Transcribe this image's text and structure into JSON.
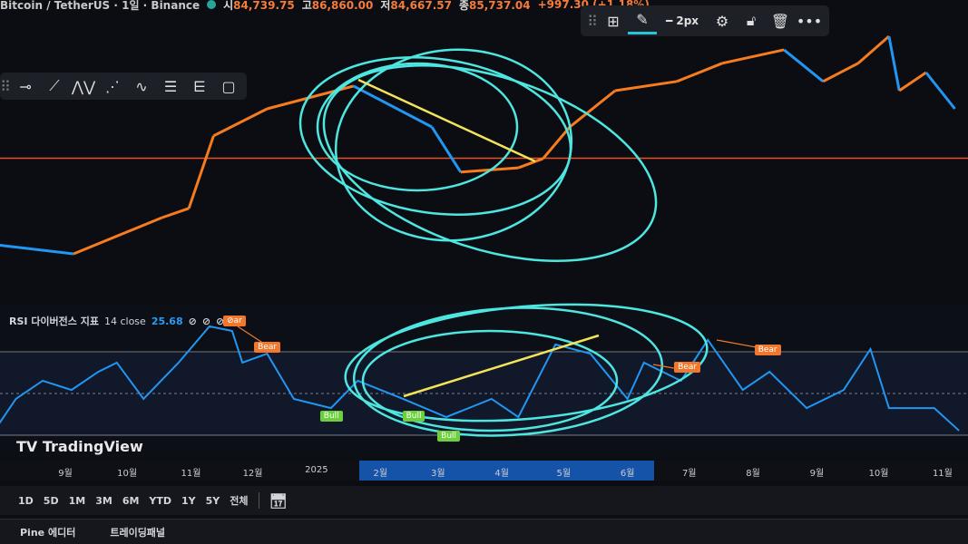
{
  "header": {
    "symbol": "Bitcoin / TetherUS · 1일 · Binance",
    "open_label": "시",
    "open": "84,739.75",
    "high_label": "고",
    "high": "86,860.00",
    "low_label": "저",
    "low": "84,667.57",
    "close_label": "종",
    "close": "85,737.04",
    "change": "+997.30 (+1.18%)"
  },
  "drawing_toolbar": {
    "icons": [
      "add-grid-icon",
      "pencil-icon",
      "line-style-icon",
      "settings-icon",
      "lock-icon",
      "trash-icon",
      "more-icon"
    ],
    "width_label": "2px",
    "accent": "#26c6da"
  },
  "left_toolbar": {
    "icons": [
      "drag-handle-icon",
      "horizontal-ray-icon",
      "trend-line-icon",
      "xabcd-pattern-icon",
      "abcd-pattern-icon",
      "elliott-wave-icon",
      "parallel-channel-icon",
      "regression-icon",
      "rectangle-icon"
    ]
  },
  "price": {
    "up_color": "#f57c1f",
    "down_color": "#2196f3",
    "price_line_color": "#e8502a",
    "price_line_value": 87,
    "series": [
      [
        "2024-07-30",
        60.7
      ],
      [
        "2024-09-05",
        58
      ],
      [
        "2024-10-18",
        69
      ],
      [
        "2024-10-31",
        71.8
      ],
      [
        "2024-11-12",
        93.8
      ],
      [
        "2024-12-08",
        102
      ],
      [
        "2025-01-19",
        108.9
      ],
      [
        "2025-02-26",
        96.5
      ],
      [
        "2025-03-12",
        82.8
      ],
      [
        "2025-04-09",
        84.1
      ],
      [
        "2025-04-21",
        86.9
      ],
      [
        "2025-05-04",
        96.5
      ],
      [
        "2025-05-26",
        107.5
      ],
      [
        "2025-06-25",
        110.3
      ],
      [
        "2025-07-17",
        115.8
      ],
      [
        "2025-08-16",
        119.9
      ],
      [
        "2025-09-04",
        110.3
      ],
      [
        "2025-09-21",
        115.8
      ],
      [
        "2025-10-06",
        124
      ],
      [
        "2025-10-11",
        107.5
      ],
      [
        "2025-10-24",
        113
      ],
      [
        "2025-11-07",
        102
      ]
    ]
  },
  "rsi": {
    "title": "RSI 다이버전스 지표",
    "params": "14 close",
    "value": "25.68",
    "color": "#2196f3",
    "levels": [
      70,
      50,
      30
    ],
    "series": [
      [
        "2024-07-30",
        34.3
      ],
      [
        "2024-08-08",
        47.4
      ],
      [
        "2024-08-21",
        56.1
      ],
      [
        "2024-09-04",
        51.7
      ],
      [
        "2024-09-17",
        60.4
      ],
      [
        "2024-09-26",
        64.8
      ],
      [
        "2024-10-09",
        47.4
      ],
      [
        "2024-10-26",
        64.8
      ],
      [
        "2024-11-10",
        82.2
      ],
      [
        "2024-11-21",
        80
      ],
      [
        "2024-11-26",
        64.8
      ],
      [
        "2024-12-08",
        69.1
      ],
      [
        "2024-12-21",
        47.4
      ],
      [
        "2025-01-08",
        43
      ],
      [
        "2025-01-21",
        56.1
      ],
      [
        "2025-02-12",
        47.4
      ],
      [
        "2025-03-05",
        38.7
      ],
      [
        "2025-03-27",
        47.4
      ],
      [
        "2025-04-09",
        38.7
      ],
      [
        "2025-04-27",
        73.5
      ],
      [
        "2025-05-14",
        69.1
      ],
      [
        "2025-06-01",
        47.4
      ],
      [
        "2025-06-09",
        64.8
      ],
      [
        "2025-06-27",
        56.1
      ],
      [
        "2025-07-10",
        75.7
      ],
      [
        "2025-07-27",
        51.7
      ],
      [
        "2025-08-09",
        60.4
      ],
      [
        "2025-08-27",
        43
      ],
      [
        "2025-09-14",
        51.7
      ],
      [
        "2025-09-27",
        71.3
      ],
      [
        "2025-10-06",
        43
      ],
      [
        "2025-10-28",
        43
      ],
      [
        "2025-11-09",
        32.2
      ]
    ],
    "labels": [
      {
        "text": "⊘ar",
        "type": "bear",
        "date": "2024-11-22",
        "rsi": 84.8
      },
      {
        "text": "Bear",
        "type": "bear",
        "date": "2024-12-07",
        "rsi": 72
      },
      {
        "text": "Bear",
        "type": "bear",
        "date": "2025-06-29",
        "rsi": 62.6
      },
      {
        "text": "Bear",
        "type": "bear",
        "date": "2025-08-07",
        "rsi": 70.9
      },
      {
        "text": "Bull",
        "type": "bull",
        "date": "2025-01-08",
        "rsi": 39
      },
      {
        "text": "Bull",
        "type": "bull",
        "date": "2025-02-17",
        "rsi": 39
      },
      {
        "text": "Bull",
        "type": "bull",
        "date": "2025-03-06",
        "rsi": 29.6
      }
    ]
  },
  "brand": "TradingView",
  "time_axis": [
    {
      "label": "9월",
      "date": "2024-09-01"
    },
    {
      "label": "10월",
      "date": "2024-10-01"
    },
    {
      "label": "11월",
      "date": "2024-11-01"
    },
    {
      "label": "12월",
      "date": "2024-12-01"
    },
    {
      "label": "2025",
      "date": "2025-01-01"
    },
    {
      "label": "2월",
      "date": "2025-02-01"
    },
    {
      "label": "3월",
      "date": "2025-03-01"
    },
    {
      "label": "4월",
      "date": "2025-04-01"
    },
    {
      "label": "5월",
      "date": "2025-05-01"
    },
    {
      "label": "6월",
      "date": "2025-06-01"
    },
    {
      "label": "7월",
      "date": "2025-07-01"
    },
    {
      "label": "8월",
      "date": "2025-08-01"
    },
    {
      "label": "9월",
      "date": "2025-09-01"
    },
    {
      "label": "10월",
      "date": "2025-10-01"
    },
    {
      "label": "11월",
      "date": "2025-11-01"
    }
  ],
  "ranges": [
    "1D",
    "5D",
    "1M",
    "3M",
    "6M",
    "YTD",
    "1Y",
    "5Y",
    "전체"
  ],
  "bottom_tabs": [
    "Pine 에디터",
    "트레이딩패널"
  ]
}
